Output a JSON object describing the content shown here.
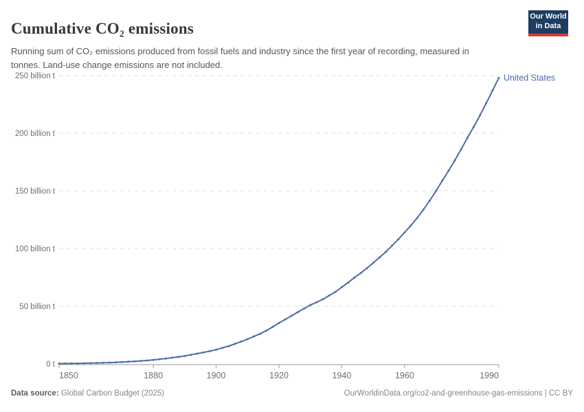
{
  "header": {
    "title": "Cumulative CO₂ emissions",
    "subtitle": "Running sum of CO₂ emissions produced from fossil fuels and industry since the first year of recording, measured in tonnes. Land-use change emissions are not included.",
    "logo": {
      "line1": "Our World",
      "line2": "in Data"
    }
  },
  "footer": {
    "source_label": "Data source:",
    "source_value": " Global Carbon Budget (2025)",
    "credit": "OurWorldinData.org/co2-and-greenhouse-gas-emissions | CC BY"
  },
  "colors": {
    "line": "#4c6ba8",
    "entity_label": "#4c6ba8",
    "grid": "#dddddd",
    "axis": "#999999",
    "tick_text": "#6e6e6e",
    "title_text": "#383838",
    "subtitle_text": "#555555",
    "logo_bg": "#1d3d63",
    "logo_underline": "#dc3a34",
    "footer_text": "#868686"
  },
  "chart_data": {
    "type": "line",
    "title": "Cumulative CO₂ emissions",
    "xlabel": "",
    "ylabel": "",
    "unit": "billion tonnes CO₂",
    "xlim": [
      1850,
      1990
    ],
    "ylim": [
      0,
      250
    ],
    "grid": "horizontal-dashed",
    "legend_position": "end-of-line",
    "x_ticks": [
      1850,
      1880,
      1900,
      1920,
      1940,
      1960,
      1990
    ],
    "y_ticks": [
      {
        "value": 0,
        "label": "0 t"
      },
      {
        "value": 50,
        "label": "50 billion t"
      },
      {
        "value": 100,
        "label": "100 billion t"
      },
      {
        "value": 150,
        "label": "150 billion t"
      },
      {
        "value": 200,
        "label": "200 billion t"
      },
      {
        "value": 250,
        "label": "250 billion t"
      }
    ],
    "series": [
      {
        "name": "United States",
        "color": "#4c6ba8",
        "points": [
          [
            1850,
            0.3
          ],
          [
            1852,
            0.36
          ],
          [
            1854,
            0.43
          ],
          [
            1856,
            0.5
          ],
          [
            1858,
            0.6
          ],
          [
            1860,
            0.7
          ],
          [
            1862,
            0.83
          ],
          [
            1864,
            0.97
          ],
          [
            1866,
            1.15
          ],
          [
            1868,
            1.36
          ],
          [
            1870,
            1.6
          ],
          [
            1872,
            1.9
          ],
          [
            1874,
            2.2
          ],
          [
            1876,
            2.6
          ],
          [
            1878,
            3.0
          ],
          [
            1880,
            3.5
          ],
          [
            1882,
            4.1
          ],
          [
            1884,
            4.7
          ],
          [
            1886,
            5.4
          ],
          [
            1888,
            6.1
          ],
          [
            1890,
            6.9
          ],
          [
            1892,
            7.9
          ],
          [
            1894,
            8.9
          ],
          [
            1896,
            10.0
          ],
          [
            1898,
            11.1
          ],
          [
            1900,
            12.4
          ],
          [
            1902,
            13.9
          ],
          [
            1904,
            15.5
          ],
          [
            1906,
            17.4
          ],
          [
            1908,
            19.4
          ],
          [
            1910,
            21.5
          ],
          [
            1912,
            23.8
          ],
          [
            1914,
            26.1
          ],
          [
            1916,
            28.9
          ],
          [
            1918,
            32.1
          ],
          [
            1920,
            35.5
          ],
          [
            1922,
            38.5
          ],
          [
            1924,
            41.7
          ],
          [
            1926,
            44.9
          ],
          [
            1928,
            48.0
          ],
          [
            1930,
            51.0
          ],
          [
            1932,
            53.5
          ],
          [
            1934,
            56.0
          ],
          [
            1936,
            59.3
          ],
          [
            1938,
            62.5
          ],
          [
            1940,
            66.5
          ],
          [
            1942,
            70.5
          ],
          [
            1944,
            74.8
          ],
          [
            1946,
            78.7
          ],
          [
            1948,
            83.0
          ],
          [
            1950,
            87.5
          ],
          [
            1952,
            92.3
          ],
          [
            1954,
            97.0
          ],
          [
            1956,
            102.5
          ],
          [
            1958,
            108.0
          ],
          [
            1960,
            114.0
          ],
          [
            1962,
            120.0
          ],
          [
            1964,
            126.5
          ],
          [
            1966,
            133.8
          ],
          [
            1968,
            141.5
          ],
          [
            1970,
            150.0
          ],
          [
            1972,
            158.8
          ],
          [
            1974,
            167.5
          ],
          [
            1976,
            176.5
          ],
          [
            1978,
            186.0
          ],
          [
            1980,
            196.0
          ],
          [
            1982,
            205.5
          ],
          [
            1984,
            215.5
          ],
          [
            1986,
            226.0
          ],
          [
            1988,
            237.0
          ],
          [
            1990,
            248.0
          ]
        ]
      }
    ]
  }
}
